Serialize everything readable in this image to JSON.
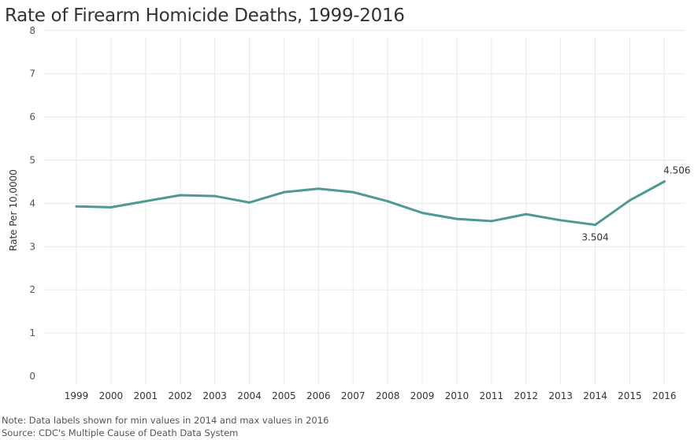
{
  "title": "Rate of Firearm Homicide Deaths, 1999-2016",
  "note": "Note: Data labels shown for min values in 2014 and max values in 2016",
  "source": "Source: CDC's Multiple Cause of Death Data System",
  "colors": {
    "line": "#4e9a93",
    "grid": "#e9e9e9"
  },
  "chart_data": {
    "type": "line",
    "title": "Rate of Firearm Homicide Deaths, 1999-2016",
    "xlabel": "",
    "ylabel": "Rate Per 10,0000",
    "ylim": [
      0,
      8
    ],
    "yticks": [
      0,
      1,
      2,
      3,
      4,
      5,
      6,
      7,
      8
    ],
    "grid": true,
    "categories": [
      "1999",
      "2000",
      "2001",
      "2002",
      "2003",
      "2004",
      "2005",
      "2006",
      "2007",
      "2008",
      "2009",
      "2010",
      "2011",
      "2012",
      "2013",
      "2014",
      "2015",
      "2016"
    ],
    "series": [
      {
        "values": [
          3.93,
          3.91,
          4.05,
          4.19,
          4.17,
          4.02,
          4.26,
          4.34,
          4.26,
          4.05,
          3.78,
          3.64,
          3.59,
          3.75,
          3.61,
          3.504,
          4.07,
          4.506
        ]
      }
    ],
    "data_labels": [
      {
        "category": "2014",
        "text": "3.504",
        "position": "below"
      },
      {
        "category": "2016",
        "text": "4.506",
        "position": "above"
      }
    ]
  }
}
